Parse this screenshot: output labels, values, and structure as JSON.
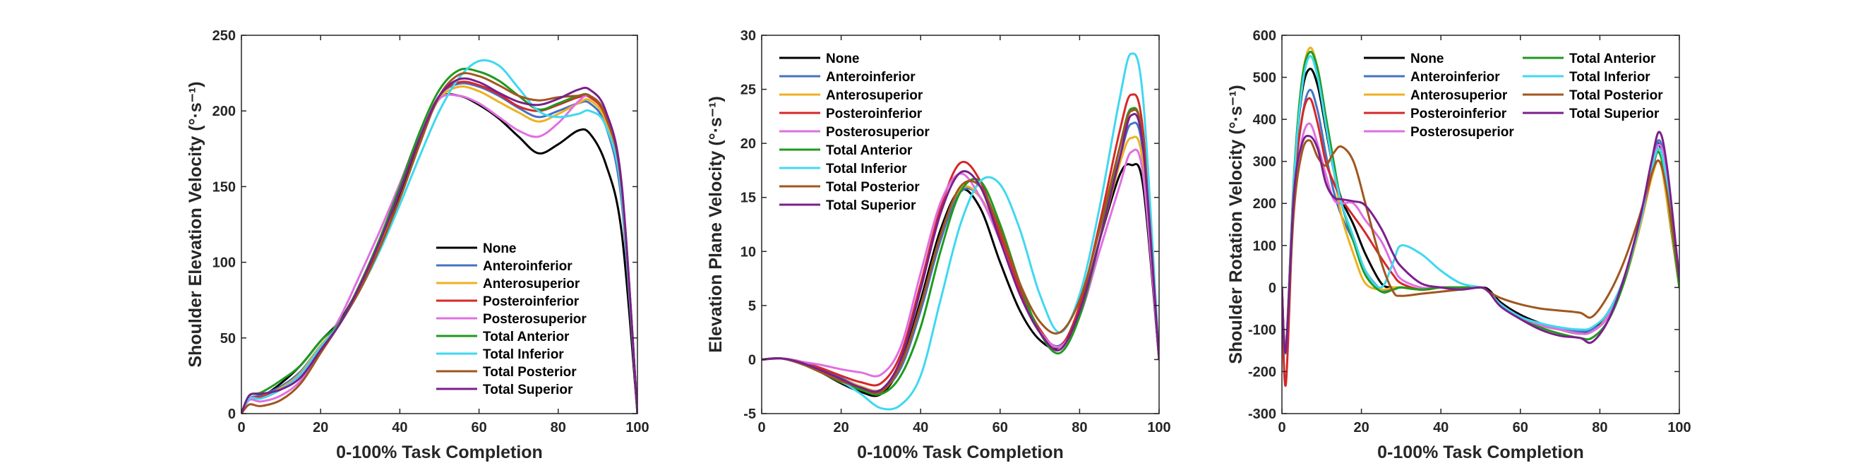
{
  "chart_data": [
    {
      "type": "line",
      "xlabel": "0-100% Task Completion",
      "ylabel": "Shoulder Elevation Velocity (°·s⁻¹)",
      "xlim": [
        0,
        100
      ],
      "ylim": [
        0,
        250
      ],
      "xticks": [
        "0",
        "20",
        "40",
        "60",
        "80",
        "100"
      ],
      "yticks": [
        "0",
        "50",
        "100",
        "150",
        "200",
        "250"
      ],
      "legend_position": "lower-middle",
      "legend_columns": 1,
      "x": [
        0,
        2,
        5,
        10,
        15,
        20,
        25,
        30,
        35,
        40,
        45,
        50,
        55,
        60,
        65,
        70,
        75,
        80,
        85,
        88,
        92,
        96,
        100
      ],
      "series": [
        {
          "name": "None",
          "color": "#000000",
          "values": [
            0,
            10,
            11,
            20,
            32,
            48,
            62,
            85,
            112,
            145,
            180,
            208,
            210,
            204,
            195,
            183,
            172,
            178,
            187,
            185,
            165,
            120,
            0
          ]
        },
        {
          "name": "Anteroinferior",
          "color": "#4472C4",
          "values": [
            0,
            10,
            12,
            18,
            28,
            45,
            60,
            85,
            115,
            148,
            183,
            210,
            218,
            216,
            210,
            202,
            196,
            200,
            205,
            205,
            190,
            140,
            0
          ]
        },
        {
          "name": "Anterosuperior",
          "color": "#EDB120",
          "values": [
            0,
            10,
            11,
            17,
            27,
            45,
            60,
            84,
            113,
            147,
            182,
            208,
            216,
            213,
            206,
            199,
            193,
            198,
            205,
            207,
            193,
            145,
            0
          ]
        },
        {
          "name": "Posteroinferior",
          "color": "#D62728",
          "values": [
            0,
            10,
            11,
            16,
            26,
            44,
            60,
            84,
            114,
            148,
            183,
            210,
            219,
            217,
            211,
            203,
            200,
            204,
            209,
            209,
            196,
            150,
            0
          ]
        },
        {
          "name": "Posterosuperior",
          "color": "#E06FE0",
          "values": [
            0,
            9,
            8,
            12,
            22,
            42,
            64,
            92,
            121,
            152,
            185,
            208,
            210,
            205,
            196,
            187,
            183,
            192,
            206,
            210,
            197,
            150,
            0
          ]
        },
        {
          "name": "Total Anterior",
          "color": "#1E9A1E",
          "values": [
            0,
            12,
            14,
            22,
            32,
            48,
            61,
            86,
            116,
            150,
            186,
            214,
            227,
            226,
            220,
            210,
            201,
            205,
            210,
            210,
            197,
            150,
            0
          ]
        },
        {
          "name": "Total Inferior",
          "color": "#3FD8F0",
          "values": [
            0,
            10,
            10,
            16,
            26,
            44,
            60,
            82,
            108,
            138,
            170,
            200,
            222,
            233,
            230,
            215,
            200,
            196,
            198,
            200,
            190,
            145,
            0
          ]
        },
        {
          "name": "Total Posterior",
          "color": "#A0561E",
          "values": [
            0,
            6,
            5,
            9,
            20,
            40,
            60,
            82,
            110,
            142,
            178,
            210,
            224,
            223,
            217,
            210,
            207,
            209,
            210,
            210,
            197,
            150,
            0
          ]
        },
        {
          "name": "Total Superior",
          "color": "#7B1F8C",
          "values": [
            0,
            12,
            13,
            16,
            24,
            42,
            60,
            85,
            114,
            147,
            182,
            210,
            221,
            219,
            212,
            206,
            204,
            208,
            214,
            214,
            200,
            152,
            0
          ]
        }
      ]
    },
    {
      "type": "line",
      "xlabel": "0-100% Task Completion",
      "ylabel": "Elevation Plane Velocity (°·s⁻¹)",
      "xlim": [
        0,
        100
      ],
      "ylim": [
        -5,
        30
      ],
      "xticks": [
        "0",
        "20",
        "40",
        "60",
        "80",
        "100"
      ],
      "yticks": [
        "-5",
        "0",
        "5",
        "10",
        "15",
        "20",
        "25",
        "30"
      ],
      "legend_position": "top-left",
      "legend_columns": 1,
      "x": [
        0,
        5,
        10,
        15,
        20,
        25,
        30,
        35,
        40,
        45,
        50,
        55,
        60,
        65,
        70,
        75,
        80,
        85,
        90,
        93,
        96,
        100
      ],
      "series": [
        {
          "name": "None",
          "color": "#000000",
          "values": [
            0,
            0.1,
            -0.4,
            -1.2,
            -2.2,
            -3.0,
            -3.2,
            -0.5,
            5.5,
            12,
            15.7,
            14,
            9,
            4.5,
            1.8,
            1.2,
            4.5,
            11,
            17,
            18,
            16,
            0
          ]
        },
        {
          "name": "Anteroinferior",
          "color": "#4472C4",
          "values": [
            0,
            0.1,
            -0.3,
            -0.9,
            -1.7,
            -2.5,
            -2.8,
            -0.8,
            4.5,
            11,
            15.5,
            15,
            11,
            6,
            2.6,
            1.3,
            4.5,
            11,
            18.5,
            21.8,
            19,
            0
          ]
        },
        {
          "name": "Anterosuperior",
          "color": "#EDB120",
          "values": [
            0,
            0.1,
            -0.3,
            -1.0,
            -1.8,
            -2.5,
            -2.8,
            -0.5,
            5,
            11.5,
            15.8,
            15,
            11,
            6,
            2.5,
            1.2,
            4.5,
            11,
            18,
            20.5,
            18,
            0
          ]
        },
        {
          "name": "Posteroinferior",
          "color": "#D62728",
          "values": [
            0,
            0.1,
            -0.2,
            -0.8,
            -1.5,
            -2.1,
            -2.2,
            0.5,
            7,
            14,
            18.2,
            16.5,
            11.5,
            6.5,
            2.8,
            1.2,
            5,
            12.5,
            21,
            24.5,
            21,
            0
          ]
        },
        {
          "name": "Posterosuperior",
          "color": "#E06FE0",
          "values": [
            0,
            0.1,
            -0.2,
            -0.5,
            -0.9,
            -1.2,
            -1.4,
            1.2,
            8,
            14.5,
            17.2,
            15,
            11,
            6,
            2.6,
            1.2,
            4,
            10,
            16,
            19.2,
            17,
            0
          ]
        },
        {
          "name": "Total Anterior",
          "color": "#1E9A1E",
          "values": [
            0,
            0.1,
            -0.4,
            -1.2,
            -2.1,
            -2.8,
            -3.2,
            -1.5,
            3,
            10,
            15.5,
            16.5,
            12.5,
            7,
            2.5,
            0.6,
            4,
            11,
            19.5,
            23.2,
            20,
            0
          ]
        },
        {
          "name": "Total Inferior",
          "color": "#3FD8F0",
          "values": [
            0,
            0.1,
            -0.3,
            -1.0,
            -2.0,
            -3.2,
            -4.5,
            -4.2,
            -1.5,
            5.5,
            12.5,
            16.5,
            16.2,
            12,
            6,
            2.5,
            6,
            14,
            24,
            28.3,
            24,
            0
          ]
        },
        {
          "name": "Total Posterior",
          "color": "#A0561E",
          "values": [
            0,
            0.1,
            -0.4,
            -1.2,
            -2.0,
            -2.6,
            -3.0,
            -0.5,
            5,
            11.5,
            16,
            16,
            12,
            7,
            3.5,
            2.5,
            5.5,
            12,
            19.5,
            23,
            20,
            0
          ]
        },
        {
          "name": "Total Superior",
          "color": "#7B1F8C",
          "values": [
            0,
            0.1,
            -0.3,
            -1.0,
            -1.8,
            -2.6,
            -2.8,
            0,
            6.5,
            13.5,
            17.3,
            16,
            11,
            6,
            2.5,
            0.9,
            4.5,
            11,
            18.5,
            22.6,
            19.5,
            0
          ]
        }
      ]
    },
    {
      "type": "line",
      "xlabel": "0-100% Task Completion",
      "ylabel": "Shoulder Rotation Velocity (°·s⁻¹)",
      "xlim": [
        0,
        100
      ],
      "ylim": [
        -300,
        600
      ],
      "xticks": [
        "0",
        "20",
        "40",
        "60",
        "80",
        "100"
      ],
      "yticks": [
        "-300",
        "-200",
        "-100",
        "0",
        "100",
        "200",
        "300",
        "400",
        "500",
        "600"
      ],
      "legend_position": "top",
      "legend_columns": 2,
      "x": [
        0,
        1,
        3,
        5,
        7,
        9,
        11,
        13,
        15,
        18,
        21,
        25,
        28,
        30,
        35,
        40,
        45,
        50,
        52,
        55,
        60,
        65,
        70,
        75,
        78,
        82,
        86,
        90,
        93,
        95,
        97,
        100
      ],
      "series": [
        {
          "name": "None",
          "color": "#000000",
          "values": [
            0,
            -150,
            250,
            460,
            520,
            480,
            380,
            280,
            210,
            150,
            80,
            10,
            0,
            0,
            -5,
            0,
            0,
            0,
            -5,
            -35,
            -65,
            -85,
            -100,
            -110,
            -100,
            -60,
            20,
            150,
            280,
            340,
            200,
            0
          ]
        },
        {
          "name": "Anteroinferior",
          "color": "#4472C4",
          "values": [
            0,
            -150,
            220,
            400,
            470,
            420,
            320,
            230,
            170,
            110,
            40,
            -5,
            -5,
            0,
            -5,
            0,
            0,
            0,
            -10,
            -40,
            -70,
            -90,
            -100,
            -105,
            -100,
            -70,
            20,
            150,
            290,
            350,
            260,
            20
          ]
        },
        {
          "name": "Anterosuperior",
          "color": "#EDB120",
          "values": [
            0,
            -140,
            260,
            490,
            570,
            520,
            400,
            280,
            170,
            80,
            10,
            -5,
            0,
            0,
            -5,
            0,
            0,
            0,
            -10,
            -40,
            -70,
            -90,
            -100,
            -110,
            -105,
            -70,
            10,
            140,
            260,
            300,
            200,
            0
          ]
        },
        {
          "name": "Posteroinferior",
          "color": "#D62728",
          "values": [
            0,
            -230,
            220,
            400,
            450,
            390,
            300,
            250,
            210,
            170,
            130,
            70,
            30,
            10,
            -5,
            0,
            0,
            0,
            -10,
            -40,
            -70,
            -90,
            -100,
            -110,
            -105,
            -70,
            20,
            150,
            270,
            330,
            240,
            20
          ]
        },
        {
          "name": "Posterosuperior",
          "color": "#E06FE0",
          "values": [
            0,
            -140,
            200,
            350,
            390,
            340,
            270,
            210,
            200,
            200,
            160,
            110,
            50,
            20,
            0,
            0,
            0,
            0,
            -10,
            -40,
            -70,
            -90,
            -100,
            -110,
            -105,
            -70,
            20,
            150,
            280,
            340,
            260,
            20
          ]
        },
        {
          "name": "Total Anterior",
          "color": "#1E9A1E",
          "values": [
            0,
            -150,
            260,
            490,
            560,
            520,
            410,
            300,
            200,
            110,
            30,
            -10,
            -5,
            0,
            -5,
            0,
            0,
            0,
            -10,
            -40,
            -75,
            -95,
            -110,
            -120,
            -120,
            -80,
            10,
            150,
            280,
            320,
            220,
            0
          ]
        },
        {
          "name": "Total Inferior",
          "color": "#3FD8F0",
          "values": [
            0,
            -150,
            250,
            470,
            550,
            500,
            390,
            280,
            200,
            120,
            40,
            0,
            60,
            100,
            80,
            40,
            10,
            0,
            -10,
            -40,
            -70,
            -85,
            -95,
            -100,
            -95,
            -60,
            20,
            150,
            280,
            330,
            240,
            20
          ]
        },
        {
          "name": "Total Posterior",
          "color": "#A0561E",
          "values": [
            0,
            -150,
            180,
            320,
            350,
            310,
            290,
            320,
            335,
            300,
            200,
            60,
            -10,
            -20,
            -15,
            -10,
            -5,
            0,
            -10,
            -25,
            -40,
            -50,
            -55,
            -60,
            -70,
            -20,
            60,
            170,
            270,
            300,
            220,
            20
          ]
        },
        {
          "name": "Total Superior",
          "color": "#7B1F8C",
          "values": [
            0,
            -150,
            220,
            340,
            360,
            330,
            250,
            215,
            210,
            205,
            195,
            140,
            80,
            50,
            10,
            0,
            -5,
            0,
            -10,
            -45,
            -75,
            -100,
            -115,
            -120,
            -130,
            -80,
            20,
            160,
            300,
            370,
            280,
            20
          ]
        }
      ]
    }
  ]
}
